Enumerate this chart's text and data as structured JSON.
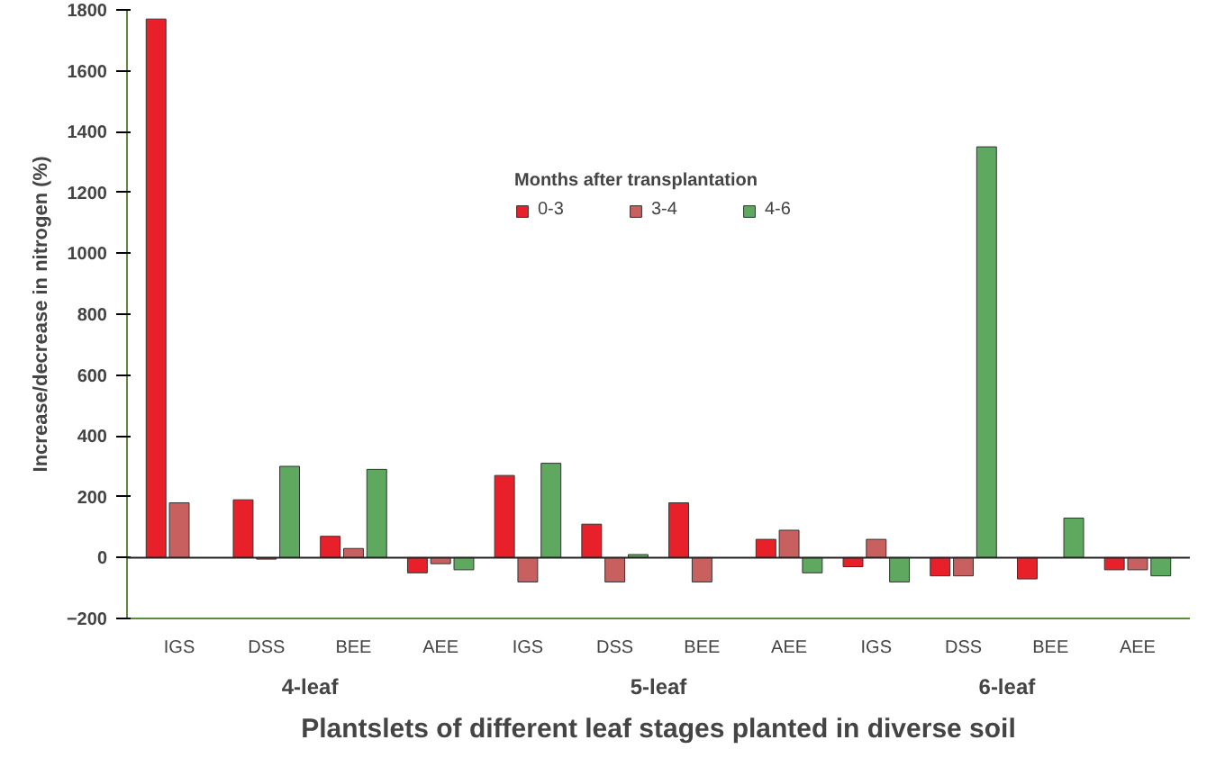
{
  "chart_data": {
    "type": "bar",
    "xlabel": "Plantslets of different leaf stages planted in diverse soil",
    "ylabel": "Increase/decrease in nitrogen (%)",
    "legend_title": "Months after transplantation",
    "categories": [
      "IGS",
      "DSS",
      "BEE",
      "AEE",
      "IGS",
      "DSS",
      "BEE",
      "AEE",
      "IGS",
      "DSS",
      "BEE",
      "AEE"
    ],
    "series": [
      {
        "name": "0-3",
        "color": "#e8202a",
        "values": [
          1770,
          190,
          70,
          -50,
          270,
          110,
          180,
          60,
          -30,
          -60,
          -70,
          -40
        ]
      },
      {
        "name": "3-4",
        "color": "#c86060",
        "values": [
          180,
          -5,
          30,
          -20,
          -80,
          -80,
          -80,
          90,
          60,
          -60,
          null,
          -40
        ]
      },
      {
        "name": "4-6",
        "color": "#5fa85f",
        "values": [
          null,
          300,
          290,
          -40,
          310,
          10,
          null,
          -50,
          -80,
          1350,
          130,
          -60
        ]
      }
    ],
    "annotations": [
      "4-leaf",
      "5-leaf",
      "6-leaf"
    ],
    "ylim": [
      -200,
      1800
    ],
    "yticks": [
      -200,
      0,
      200,
      400,
      600,
      800,
      1000,
      1200,
      1400,
      1600,
      1800
    ],
    "ref_lines": [
      {
        "axis": "y",
        "value": 0,
        "color": "#222222"
      }
    ],
    "legend": "top"
  }
}
